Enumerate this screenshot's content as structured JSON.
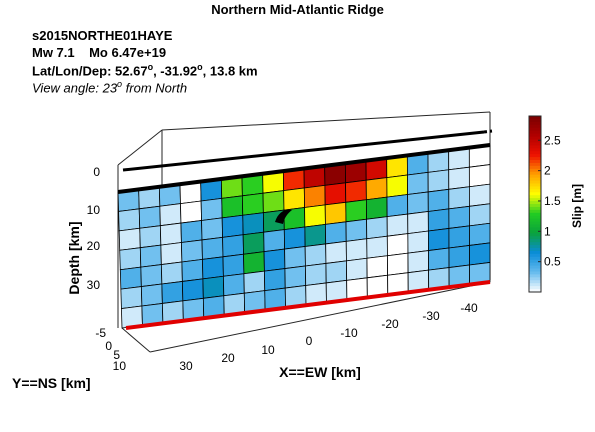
{
  "header": {
    "title": "Northern Mid-Atlantic Ridge",
    "event_id": "s2015NORTHE01HAYE",
    "mw_label": "Mw 7.1",
    "mo_label": "Mo 6.47e+19",
    "latlondep_prefix": "Lat/Lon/Dep: 52.67",
    "latlondep_mid": ", -31.92",
    "latlondep_suffix": ", 13.8 km",
    "degree_symbol": "o",
    "view_prefix": "View angle:  23",
    "view_suffix": " from North"
  },
  "chart_data": {
    "type": "heatmap",
    "title": "Northern Mid-Atlantic Ridge",
    "xlabel": "X==EW [km]",
    "ylabel": "Y==NS [km]",
    "zlabel": "Depth [km]",
    "x_ticks": [
      "30",
      "20",
      "10",
      "0",
      "-10",
      "-20",
      "-30",
      "-40"
    ],
    "y_ticks": [
      "-5",
      "0",
      "5",
      "10"
    ],
    "depth_ticks": [
      "0",
      "10",
      "20",
      "30"
    ],
    "colorbar": {
      "label": "Slip [m]",
      "ticks": [
        "0.5",
        "1",
        "1.5",
        "2",
        "2.5"
      ],
      "range": [
        0,
        2.9
      ],
      "colors": [
        "#ffffff",
        "#66bbee",
        "#0a8cd8",
        "#0aa23c",
        "#22cc22",
        "#ffff00",
        "#ffa000",
        "#ee1100",
        "#b00000",
        "#7a0000"
      ]
    },
    "slip_grid_rows": 7,
    "slip_grid_cols": 18,
    "slip": [
      [
        0.3,
        0.2,
        0.3,
        0.0,
        0.6,
        1.4,
        1.3,
        1.6,
        2.2,
        2.5,
        2.8,
        2.7,
        2.4,
        1.7,
        0.4,
        0.2,
        0.1,
        0.0
      ],
      [
        0.2,
        0.3,
        0.1,
        0.0,
        0.3,
        1.2,
        1.3,
        1.4,
        1.7,
        2.0,
        2.3,
        2.2,
        1.9,
        1.6,
        0.3,
        0.2,
        0.1,
        0.0
      ],
      [
        0.1,
        0.2,
        0.1,
        0.4,
        0.3,
        0.6,
        0.7,
        0.9,
        1.2,
        1.6,
        1.8,
        1.3,
        1.1,
        0.4,
        0.3,
        0.4,
        0.2,
        0.1
      ],
      [
        0.2,
        0.3,
        0.1,
        0.3,
        0.4,
        0.5,
        0.9,
        0.4,
        0.6,
        0.8,
        0.4,
        0.3,
        0.2,
        0.1,
        0.1,
        0.5,
        0.4,
        0.2
      ],
      [
        0.4,
        0.3,
        0.2,
        0.4,
        0.6,
        0.5,
        1.1,
        0.6,
        0.3,
        0.2,
        0.1,
        0.1,
        0.1,
        0.0,
        0.1,
        0.6,
        0.5,
        0.4
      ],
      [
        0.2,
        0.3,
        0.5,
        0.6,
        0.7,
        0.4,
        0.2,
        0.5,
        0.3,
        0.2,
        0.2,
        0.1,
        0.0,
        0.0,
        0.1,
        0.4,
        0.5,
        0.6
      ],
      [
        0.1,
        0.3,
        0.2,
        0.3,
        0.4,
        0.2,
        0.3,
        0.4,
        0.2,
        0.1,
        0.1,
        0.0,
        0.0,
        0.0,
        0.1,
        0.2,
        0.3,
        0.3
      ]
    ],
    "hypocenter": {
      "x_km": 0,
      "depth_km": 13.8
    }
  }
}
